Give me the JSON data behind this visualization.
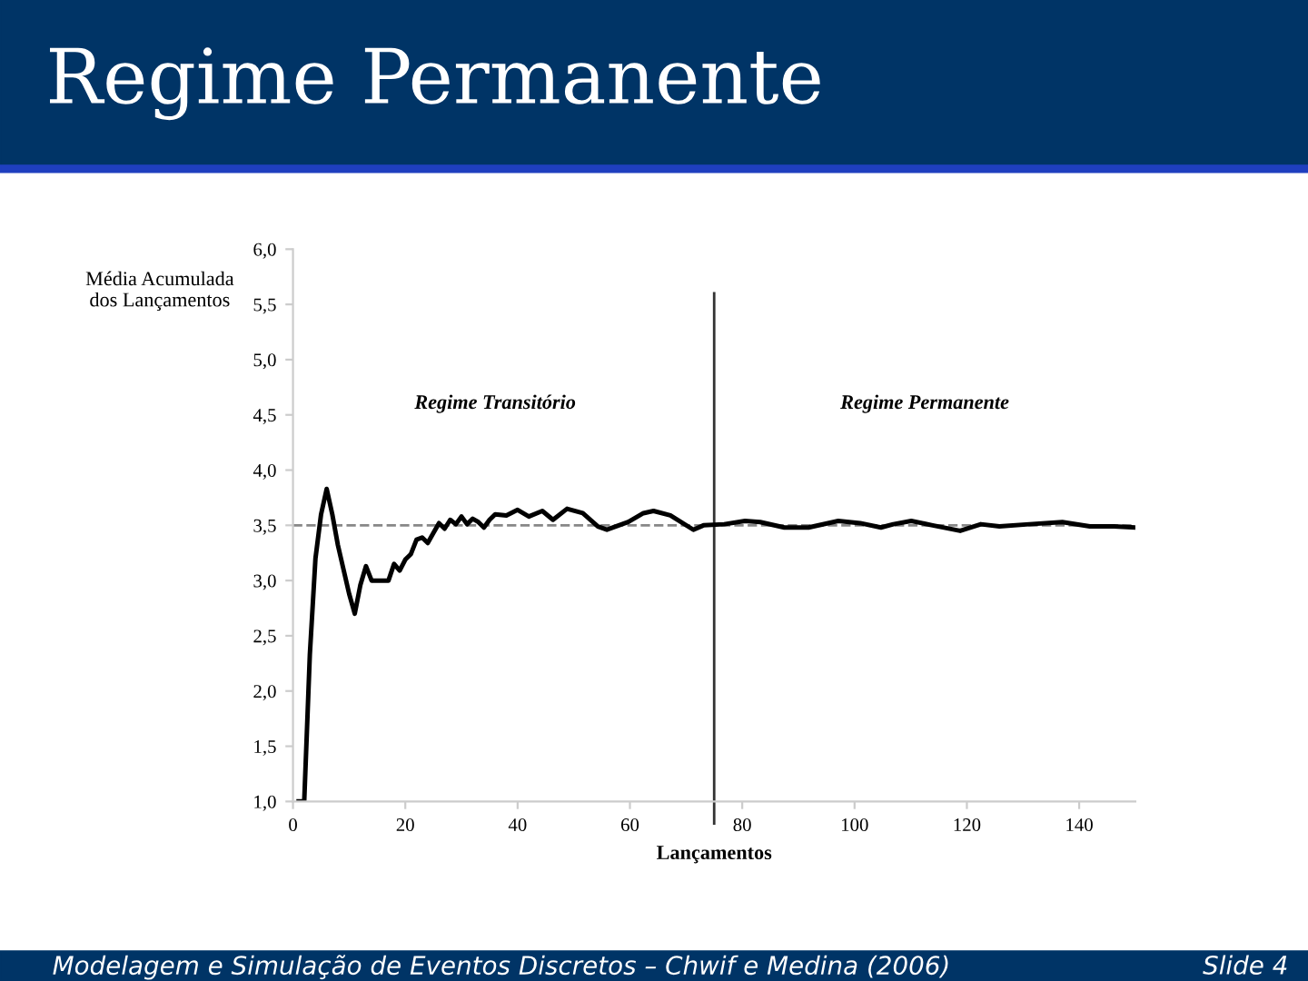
{
  "chart_data": {
    "type": "line",
    "title": "Regime Permanente",
    "xlabel": "Lançamentos",
    "ylabel": "Média Acumulada\ndos Lançamentos",
    "x": [
      1,
      2,
      3,
      4,
      5,
      6,
      7,
      8,
      9,
      10,
      11,
      12,
      13,
      14,
      15,
      16,
      17,
      18,
      19,
      20,
      21,
      22,
      23,
      24,
      25,
      26,
      27,
      28,
      29,
      30,
      31,
      32,
      33,
      34,
      35,
      36,
      38,
      40,
      42,
      44.4,
      46.3,
      48.8,
      51.6,
      54.3,
      55.9,
      59.7,
      62.4,
      64.2,
      67.2,
      71.3,
      73.1,
      76.8,
      80.5,
      83.2,
      87.5,
      91.8,
      97.1,
      101,
      104.7,
      106.9,
      110.1,
      113.9,
      118.8,
      122.5,
      125.8,
      131.1,
      137,
      141.9,
      146.2,
      150
    ],
    "series": [
      {
        "color": "#000000",
        "values": [
          1.0,
          1.0,
          2.33,
          3.2,
          3.6,
          3.83,
          3.6,
          3.32,
          3.1,
          2.88,
          2.7,
          2.96,
          3.13,
          3.0,
          3.0,
          3.0,
          3.0,
          3.15,
          3.09,
          3.19,
          3.24,
          3.37,
          3.39,
          3.34,
          3.43,
          3.52,
          3.47,
          3.55,
          3.51,
          3.58,
          3.51,
          3.56,
          3.53,
          3.48,
          3.55,
          3.6,
          3.59,
          3.64,
          3.58,
          3.63,
          3.55,
          3.65,
          3.61,
          3.49,
          3.46,
          3.53,
          3.61,
          3.63,
          3.59,
          3.46,
          3.5,
          3.51,
          3.54,
          3.53,
          3.48,
          3.48,
          3.54,
          3.52,
          3.48,
          3.51,
          3.54,
          3.5,
          3.45,
          3.51,
          3.49,
          3.51,
          3.53,
          3.49,
          3.49,
          3.48
        ]
      }
    ],
    "xlim": [
      0,
      150
    ],
    "xticks": [
      0,
      20,
      40,
      60,
      80,
      100,
      120,
      140
    ],
    "ylim": [
      1,
      6
    ],
    "yticks": [
      {
        "value": 1,
        "label": "1,0"
      },
      {
        "value": 1.5,
        "label": "1,5"
      },
      {
        "value": 2,
        "label": "2,0"
      },
      {
        "value": 2.5,
        "label": "2,5"
      },
      {
        "value": 3,
        "label": "3,0"
      },
      {
        "value": 3.5,
        "label": "3,5"
      },
      {
        "value": 4,
        "label": "4,0"
      },
      {
        "value": 4.5,
        "label": "4,5"
      },
      {
        "value": 5,
        "label": "5,0"
      },
      {
        "value": 5.5,
        "label": "5,5"
      },
      {
        "value": 6,
        "label": "6,0"
      }
    ],
    "ref_lines": [
      {
        "axis": "y",
        "value": 3.5,
        "color": "#888888",
        "line_style": "dashed"
      },
      {
        "axis": "x",
        "value": 75,
        "color": "#333333",
        "line_style": "solid"
      }
    ],
    "annotations": [
      "Regime Transitório",
      "Regime Permanente",
      "Modelagem e Simulação de Eventos Discretos – Chwif e Medina (2006)",
      "Slide 4"
    ],
    "grid": false,
    "legend": false,
    "marker": "none",
    "line_style": "solid"
  }
}
